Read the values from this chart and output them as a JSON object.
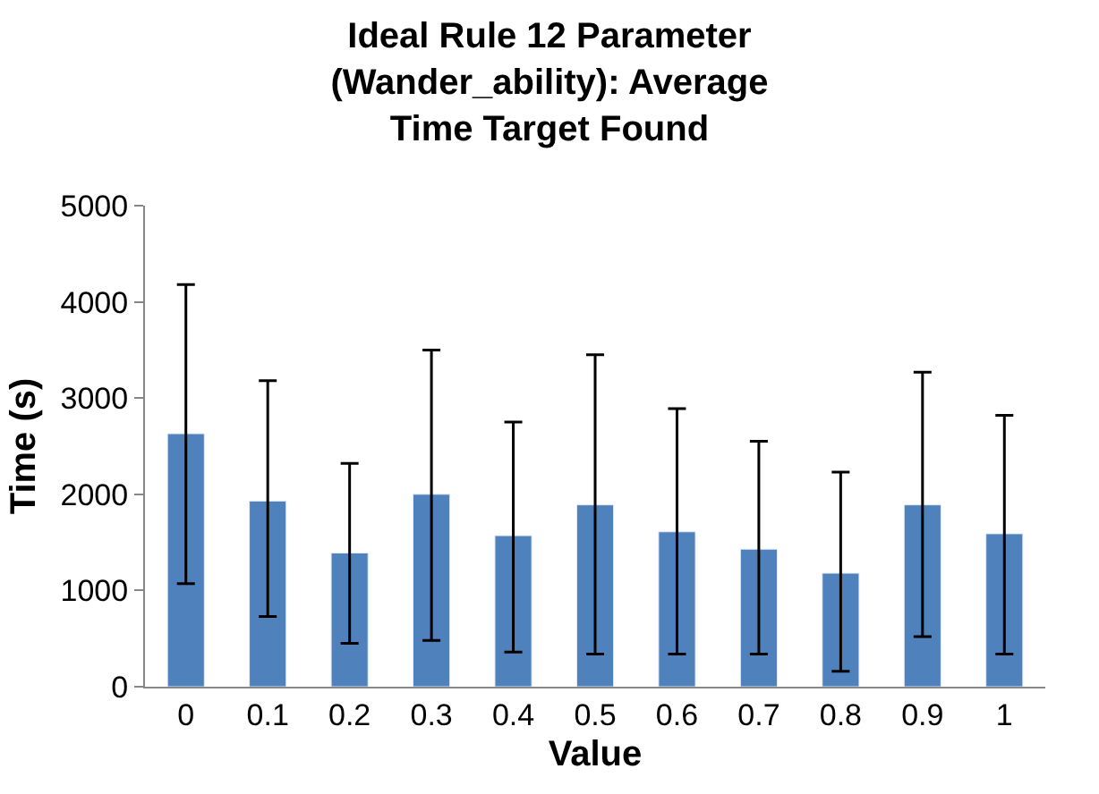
{
  "chart_data": {
    "type": "bar",
    "title": "Ideal Rule 12 Parameter (Wander_ability): Average Time Target Found",
    "xlabel": "Value",
    "ylabel": "Time (s)",
    "categories": [
      "0",
      "0.1",
      "0.2",
      "0.3",
      "0.4",
      "0.5",
      "0.6",
      "0.7",
      "0.8",
      "0.9",
      "1"
    ],
    "series": [
      {
        "color": "#4f81bd",
        "values": [
          2630,
          1930,
          1390,
          2000,
          1570,
          1890,
          1610,
          1430,
          1180,
          1890,
          1590
        ],
        "errors": [
          [
            1070,
            4180
          ],
          [
            730,
            3180
          ],
          [
            450,
            2320
          ],
          [
            480,
            3500
          ],
          [
            360,
            2750
          ],
          [
            340,
            3450
          ],
          [
            340,
            2890
          ],
          [
            340,
            2550
          ],
          [
            160,
            2230
          ],
          [
            520,
            3270
          ],
          [
            340,
            2820
          ]
        ]
      }
    ],
    "ylim": [
      0,
      5000
    ],
    "yticks": [
      0,
      1000,
      2000,
      3000,
      4000,
      5000
    ]
  }
}
